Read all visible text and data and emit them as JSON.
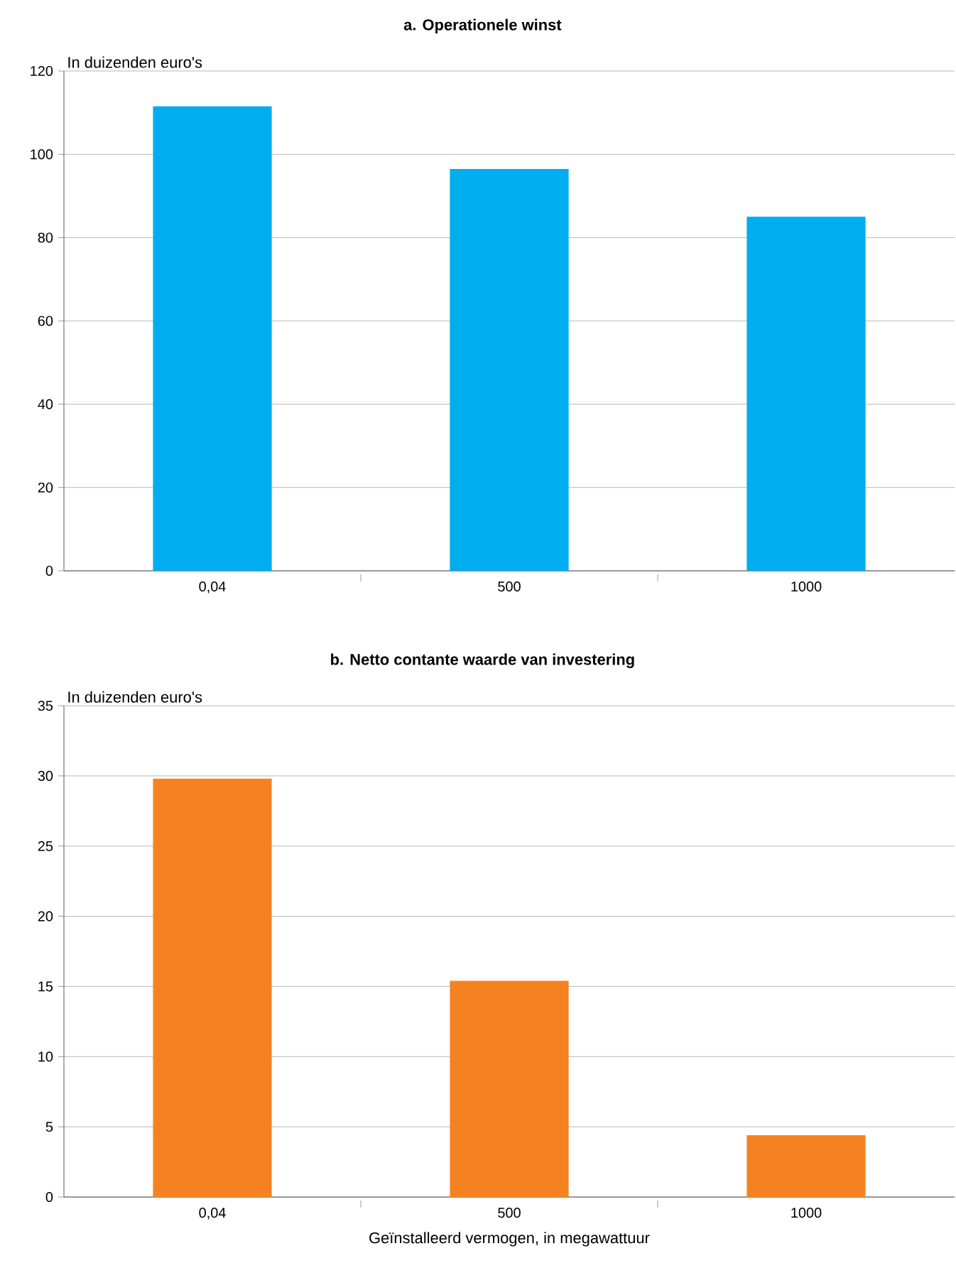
{
  "chart_data": [
    {
      "type": "bar",
      "title": "a. Operationele winst",
      "ylabel": "In duizenden euro's",
      "categories": [
        "0,04",
        "500",
        "1000"
      ],
      "values": [
        111.5,
        96.5,
        85
      ],
      "color": "#00adef",
      "ylim": [
        0,
        120
      ],
      "yticks": [
        0,
        20,
        40,
        60,
        80,
        100,
        120
      ],
      "grid": "y"
    },
    {
      "type": "bar",
      "title": "b. Netto contante waarde van investering",
      "ylabel": "In duizenden euro's",
      "xlabel": "Geïnstalleerd vermogen, in megawattuur",
      "categories": [
        "0,04",
        "500",
        "1000"
      ],
      "values": [
        29.8,
        15.4,
        4.4
      ],
      "color": "#f58220",
      "ylim": [
        0,
        35
      ],
      "yticks": [
        0,
        5,
        10,
        15,
        20,
        25,
        30,
        35
      ],
      "grid": "y"
    }
  ]
}
